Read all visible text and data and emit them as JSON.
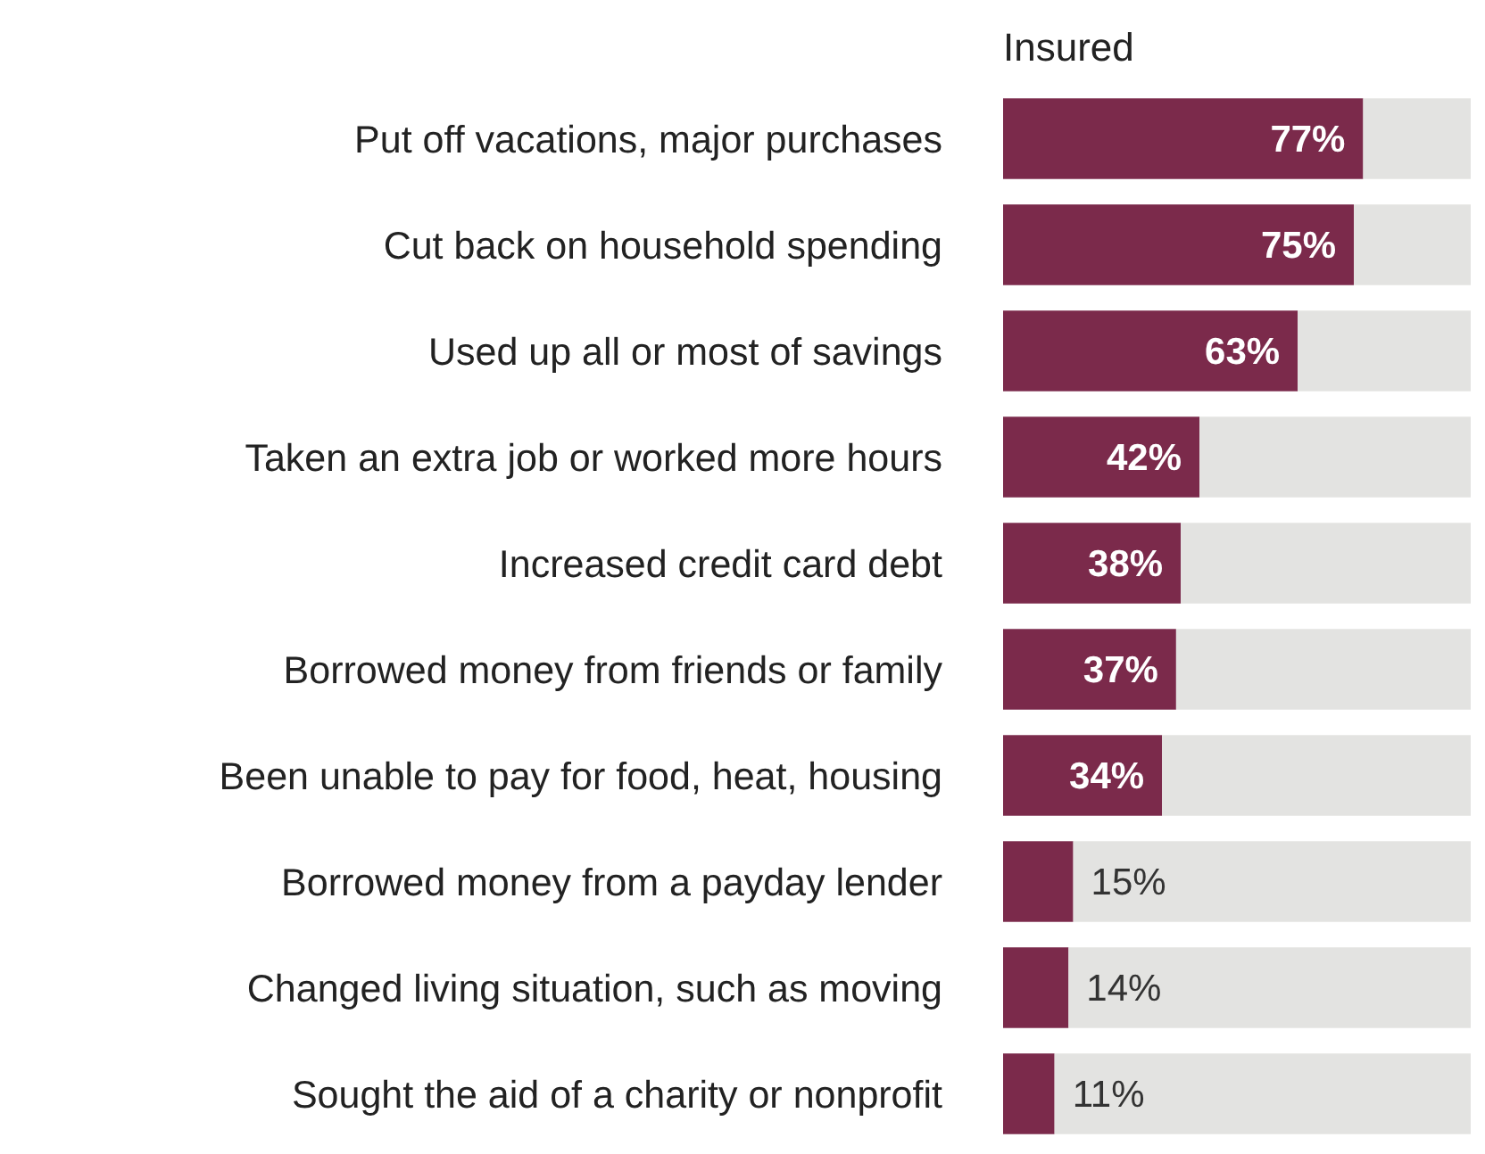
{
  "chart_data": {
    "type": "bar",
    "title": "Insured",
    "orientation": "horizontal",
    "stacked": true,
    "tick_labels": "y",
    "xlim": [
      0,
      100
    ],
    "categories": [
      "Put off vacations, major purchases",
      "Cut back on household spending",
      "Used up all or most of savings",
      "Taken an extra job or worked more hours",
      "Increased credit card debt",
      "Borrowed money from friends or family",
      "Been unable to pay for food, heat, housing",
      "Borrowed money from a payday lender",
      "Changed living situation, such as moving",
      "Sought the aid of a charity or nonprofit"
    ],
    "series": [
      {
        "color": "#7b2a4b",
        "values": [
          77,
          75,
          63,
          42,
          38,
          37,
          34,
          15,
          14,
          11
        ],
        "value_labels": [
          "77%",
          "75%",
          "63%",
          "42%",
          "38%",
          "37%",
          "34%",
          "15%",
          "14%",
          "11%"
        ]
      },
      {
        "color": "#e3e3e1",
        "values": [
          23,
          25,
          37,
          58,
          62,
          63,
          66,
          85,
          86,
          89
        ]
      }
    ]
  }
}
